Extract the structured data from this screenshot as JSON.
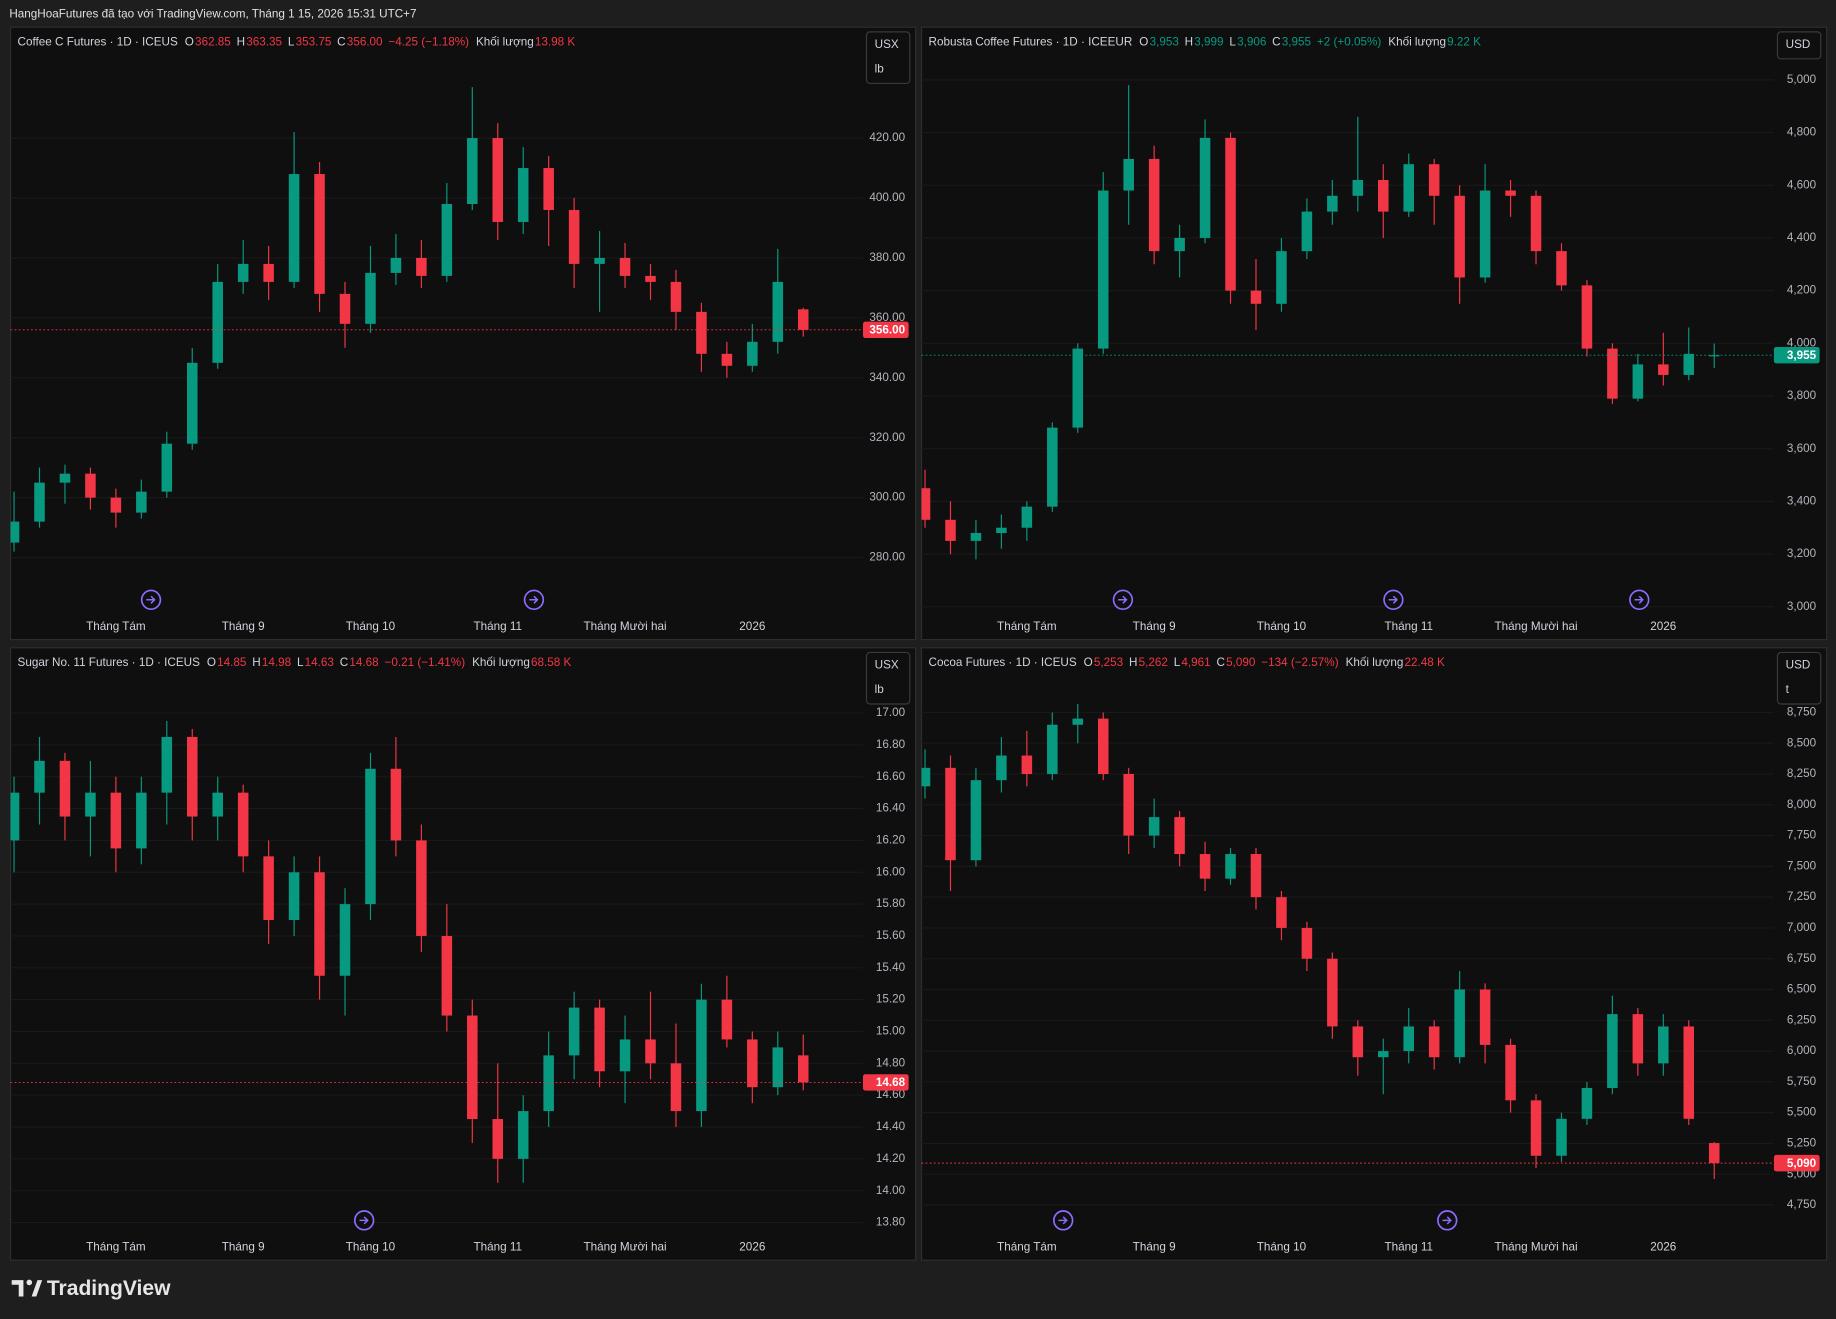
{
  "header": {
    "text": "HangHoaFutures đã tạo với TradingView.com, Tháng 1 15, 2026 15:31 UTC+7"
  },
  "footer": {
    "brand": "TradingView"
  },
  "chart_data": [
    {
      "type": "candlestick",
      "title": "Coffee C Futures · 1D · ICEUS",
      "legend": [
        {
          "label": "O",
          "value": "362.85"
        },
        {
          "label": "H",
          "value": "363.35"
        },
        {
          "label": "L",
          "value": "353.75"
        },
        {
          "label": "C",
          "value": "356.00"
        }
      ],
      "change": "−4.25 (−1.18%)",
      "volume_label": "Khối lượng",
      "volume": "13.98 K",
      "legend_color": "#f23645",
      "currency": [
        "USX",
        "lb"
      ],
      "categories": [
        null,
        null,
        null,
        null,
        "Tháng Tám",
        null,
        null,
        null,
        null,
        "Tháng 9",
        null,
        null,
        null,
        null,
        "Tháng 10",
        null,
        null,
        null,
        null,
        "Tháng 11",
        null,
        null,
        null,
        null,
        "Tháng Mười hai",
        null,
        null,
        null,
        null,
        "2026",
        null,
        null
      ],
      "open": [
        285,
        292,
        305,
        308,
        300,
        295,
        302,
        318,
        345,
        372,
        378,
        372,
        408,
        368,
        358,
        375,
        380,
        374,
        398,
        420,
        392,
        410,
        396,
        378,
        380,
        374,
        372,
        362,
        348,
        344,
        352,
        362.85
      ],
      "high": [
        302,
        310,
        311,
        310,
        303,
        306,
        322,
        350,
        378,
        386,
        384,
        422,
        412,
        372,
        384,
        388,
        386,
        405,
        437,
        425,
        417,
        414,
        400,
        389,
        385,
        378,
        376,
        365,
        352,
        358,
        383,
        363.35
      ],
      "low": [
        282,
        290,
        298,
        296,
        290,
        293,
        300,
        316,
        343,
        368,
        366,
        370,
        362,
        350,
        355,
        371,
        370,
        372,
        396,
        386,
        388,
        384,
        370,
        362,
        370,
        366,
        356,
        342,
        340,
        342,
        348,
        353.75
      ],
      "close": [
        292,
        305,
        308,
        300,
        295,
        302,
        318,
        345,
        372,
        378,
        372,
        408,
        368,
        358,
        375,
        380,
        374,
        398,
        420,
        392,
        410,
        396,
        378,
        380,
        374,
        372,
        362,
        348,
        344,
        352,
        372,
        356
      ],
      "up_color": "#089981",
      "down_color": "#f23645",
      "ylim": [
        262,
        457
      ],
      "yticks": [
        {
          "value": 280,
          "label": "280.00"
        },
        {
          "value": 300,
          "label": "300.00"
        },
        {
          "value": 320,
          "label": "320.00"
        },
        {
          "value": 340,
          "label": "340.00"
        },
        {
          "value": 360,
          "label": "360.00"
        },
        {
          "value": 380,
          "label": "380.00"
        },
        {
          "value": 400,
          "label": "400.00"
        },
        {
          "value": 420,
          "label": "420.00"
        }
      ],
      "grid": true,
      "last_price": {
        "value": 356,
        "label": "356.00"
      },
      "last_color": "#f23645"
    },
    {
      "type": "candlestick",
      "title": "Robusta Coffee Futures · 1D · ICEEUR",
      "legend": [
        {
          "label": "O",
          "value": "3,953"
        },
        {
          "label": "H",
          "value": "3,999"
        },
        {
          "label": "L",
          "value": "3,906"
        },
        {
          "label": "C",
          "value": "3,955"
        }
      ],
      "change": "+2 (+0.05%)",
      "volume_label": "Khối lượng",
      "volume": "9.22 K",
      "legend_color": "#089981",
      "currency": [
        "USD"
      ],
      "categories": [
        null,
        null,
        null,
        null,
        "Tháng Tám",
        null,
        null,
        null,
        null,
        "Tháng 9",
        null,
        null,
        null,
        null,
        "Tháng 10",
        null,
        null,
        null,
        null,
        "Tháng 11",
        null,
        null,
        null,
        null,
        "Tháng Mười hai",
        null,
        null,
        null,
        null,
        "2026",
        null,
        null
      ],
      "open": [
        3450,
        3330,
        3250,
        3280,
        3300,
        3380,
        3680,
        3980,
        4580,
        4700,
        4350,
        4400,
        4780,
        4200,
        4150,
        4350,
        4500,
        4560,
        4620,
        4500,
        4680,
        4560,
        4250,
        4580,
        4560,
        4350,
        4220,
        3980,
        3790,
        3920,
        3880,
        3953
      ],
      "high": [
        3520,
        3400,
        3330,
        3350,
        3400,
        3700,
        4000,
        4650,
        4980,
        4750,
        4450,
        4850,
        4800,
        4320,
        4400,
        4550,
        4620,
        4860,
        4680,
        4720,
        4700,
        4600,
        4680,
        4620,
        4580,
        4380,
        4240,
        4000,
        3960,
        4040,
        4060,
        3999
      ],
      "low": [
        3300,
        3200,
        3180,
        3220,
        3250,
        3360,
        3660,
        3960,
        4450,
        4300,
        4250,
        4380,
        4150,
        4050,
        4120,
        4320,
        4450,
        4500,
        4400,
        4480,
        4450,
        4150,
        4230,
        4480,
        4300,
        4200,
        3950,
        3770,
        3780,
        3840,
        3860,
        3906
      ],
      "close": [
        3330,
        3250,
        3280,
        3300,
        3380,
        3680,
        3980,
        4580,
        4700,
        4350,
        4400,
        4780,
        4200,
        4150,
        4350,
        4500,
        4560,
        4620,
        4500,
        4680,
        4560,
        4250,
        4580,
        4560,
        4350,
        4220,
        3980,
        3790,
        3920,
        3880,
        3960,
        3955
      ],
      "up_color": "#089981",
      "down_color": "#f23645",
      "ylim": [
        2982,
        5200
      ],
      "yticks": [
        {
          "value": 3000,
          "label": "3,000"
        },
        {
          "value": 3200,
          "label": "3,200"
        },
        {
          "value": 3400,
          "label": "3,400"
        },
        {
          "value": 3600,
          "label": "3,600"
        },
        {
          "value": 3800,
          "label": "3,800"
        },
        {
          "value": 4000,
          "label": "4,000"
        },
        {
          "value": 4200,
          "label": "4,200"
        },
        {
          "value": 4400,
          "label": "4,400"
        },
        {
          "value": 4600,
          "label": "4,600"
        },
        {
          "value": 4800,
          "label": "4,800"
        },
        {
          "value": 5000,
          "label": "5,000"
        }
      ],
      "grid": true,
      "last_price": {
        "value": 3955,
        "label": "3,955"
      },
      "last_color": "#089981"
    },
    {
      "type": "candlestick",
      "title": "Sugar No. 11 Futures · 1D · ICEUS",
      "legend": [
        {
          "label": "O",
          "value": "14.85"
        },
        {
          "label": "H",
          "value": "14.98"
        },
        {
          "label": "L",
          "value": "14.63"
        },
        {
          "label": "C",
          "value": "14.68"
        }
      ],
      "change": "−0.21 (−1.41%)",
      "volume_label": "Khối lượng",
      "volume": "68.58 K",
      "legend_color": "#f23645",
      "currency": [
        "USX",
        "lb"
      ],
      "categories": [
        null,
        null,
        null,
        null,
        "Tháng Tám",
        null,
        null,
        null,
        null,
        "Tháng 9",
        null,
        null,
        null,
        null,
        "Tháng 10",
        null,
        null,
        null,
        null,
        "Tháng 11",
        null,
        null,
        null,
        null,
        "Tháng Mười hai",
        null,
        null,
        null,
        null,
        "2026",
        null,
        null
      ],
      "open": [
        16.2,
        16.5,
        16.7,
        16.35,
        16.5,
        16.15,
        16.5,
        16.85,
        16.35,
        16.5,
        16.1,
        15.7,
        16.0,
        15.35,
        15.8,
        16.65,
        16.2,
        15.6,
        15.1,
        14.45,
        14.2,
        14.5,
        14.85,
        15.15,
        14.75,
        14.95,
        14.8,
        14.5,
        15.2,
        14.95,
        14.65,
        14.85
      ],
      "high": [
        16.6,
        16.85,
        16.75,
        16.7,
        16.6,
        16.6,
        16.95,
        16.9,
        16.6,
        16.55,
        16.2,
        16.1,
        16.1,
        15.9,
        16.75,
        16.85,
        16.3,
        15.8,
        15.2,
        14.8,
        14.6,
        15.0,
        15.25,
        15.2,
        15.1,
        15.25,
        15.05,
        15.3,
        15.35,
        15.0,
        15.0,
        14.98
      ],
      "low": [
        16.0,
        16.3,
        16.2,
        16.1,
        16.0,
        16.05,
        16.3,
        16.2,
        16.2,
        16.0,
        15.55,
        15.6,
        15.2,
        15.1,
        15.7,
        16.1,
        15.5,
        15.0,
        14.3,
        14.05,
        14.05,
        14.4,
        14.7,
        14.65,
        14.55,
        14.7,
        14.4,
        14.4,
        14.9,
        14.55,
        14.6,
        14.63
      ],
      "close": [
        16.5,
        16.7,
        16.35,
        16.5,
        16.15,
        16.5,
        16.85,
        16.35,
        16.5,
        16.1,
        15.7,
        16.0,
        15.35,
        15.8,
        16.65,
        16.2,
        15.6,
        15.1,
        14.45,
        14.2,
        14.5,
        14.85,
        15.15,
        14.75,
        14.95,
        14.8,
        14.5,
        15.2,
        14.95,
        14.65,
        14.9,
        14.68
      ],
      "up_color": "#089981",
      "down_color": "#f23645",
      "ylim": [
        13.74,
        17.41
      ],
      "yticks": [
        {
          "value": 13.8,
          "label": "13.80"
        },
        {
          "value": 14,
          "label": "14.00"
        },
        {
          "value": 14.2,
          "label": "14.20"
        },
        {
          "value": 14.4,
          "label": "14.40"
        },
        {
          "value": 14.6,
          "label": "14.60"
        },
        {
          "value": 14.8,
          "label": "14.80"
        },
        {
          "value": 15,
          "label": "15.00"
        },
        {
          "value": 15.2,
          "label": "15.20"
        },
        {
          "value": 15.4,
          "label": "15.40"
        },
        {
          "value": 15.6,
          "label": "15.60"
        },
        {
          "value": 15.8,
          "label": "15.80"
        },
        {
          "value": 16,
          "label": "16.00"
        },
        {
          "value": 16.2,
          "label": "16.20"
        },
        {
          "value": 16.4,
          "label": "16.40"
        },
        {
          "value": 16.6,
          "label": "16.60"
        },
        {
          "value": 16.8,
          "label": "16.80"
        },
        {
          "value": 17,
          "label": "17.00"
        }
      ],
      "grid": true,
      "last_price": {
        "value": 14.68,
        "label": "14.68"
      },
      "last_color": "#f23645"
    },
    {
      "type": "candlestick",
      "title": "Cocoa Futures · 1D · ICEUS",
      "legend": [
        {
          "label": "O",
          "value": "5,253"
        },
        {
          "label": "H",
          "value": "5,262"
        },
        {
          "label": "L",
          "value": "4,961"
        },
        {
          "label": "C",
          "value": "5,090"
        }
      ],
      "change": "−134 (−2.57%)",
      "volume_label": "Khối lượng",
      "volume": "22.48 K",
      "legend_color": "#f23645",
      "currency": [
        "USD",
        "t"
      ],
      "categories": [
        null,
        null,
        null,
        null,
        "Tháng Tám",
        null,
        null,
        null,
        null,
        "Tháng 9",
        null,
        null,
        null,
        null,
        "Tháng 10",
        null,
        null,
        null,
        null,
        "Tháng 11",
        null,
        null,
        null,
        null,
        "Tháng Mười hai",
        null,
        null,
        null,
        null,
        "2026",
        null,
        null
      ],
      "open": [
        8150,
        8300,
        7550,
        8200,
        8400,
        8250,
        8650,
        8700,
        8250,
        7750,
        7900,
        7600,
        7400,
        7600,
        7250,
        7000,
        6750,
        6200,
        5950,
        6000,
        6200,
        5950,
        6500,
        6050,
        5600,
        5150,
        5450,
        5700,
        6300,
        5900,
        6200,
        5253
      ],
      "high": [
        8450,
        8400,
        8300,
        8550,
        8600,
        8750,
        8820,
        8750,
        8300,
        8050,
        7950,
        7700,
        7650,
        7650,
        7300,
        7050,
        6800,
        6250,
        6100,
        6350,
        6250,
        6650,
        6550,
        6100,
        5650,
        5500,
        5750,
        6450,
        6350,
        6300,
        6250,
        5262
      ],
      "low": [
        8050,
        7300,
        7500,
        8100,
        8150,
        8200,
        8500,
        8200,
        7600,
        7650,
        7500,
        7300,
        7350,
        7150,
        6900,
        6650,
        6100,
        5800,
        5650,
        5900,
        5850,
        5900,
        5900,
        5500,
        5050,
        5100,
        5400,
        5650,
        5800,
        5800,
        5400,
        4961
      ],
      "close": [
        8300,
        7550,
        8200,
        8400,
        8250,
        8650,
        8700,
        8250,
        7750,
        7900,
        7600,
        7400,
        7600,
        7250,
        7000,
        6750,
        6200,
        5950,
        6000,
        6200,
        5950,
        6500,
        6050,
        5600,
        5150,
        5450,
        5700,
        6300,
        5900,
        6200,
        5450,
        5090
      ],
      "up_color": "#089981",
      "down_color": "#f23645",
      "ylim": [
        4530,
        9275
      ],
      "yticks": [
        {
          "value": 4750,
          "label": "4,750"
        },
        {
          "value": 5000,
          "label": "5,000"
        },
        {
          "value": 5250,
          "label": "5,250"
        },
        {
          "value": 5500,
          "label": "5,500"
        },
        {
          "value": 5750,
          "label": "5,750"
        },
        {
          "value": 6000,
          "label": "6,000"
        },
        {
          "value": 6250,
          "label": "6,250"
        },
        {
          "value": 6500,
          "label": "6,500"
        },
        {
          "value": 6750,
          "label": "6,750"
        },
        {
          "value": 7000,
          "label": "7,000"
        },
        {
          "value": 7250,
          "label": "7,250"
        },
        {
          "value": 7500,
          "label": "7,500"
        },
        {
          "value": 7750,
          "label": "7,750"
        },
        {
          "value": 8000,
          "label": "8,000"
        },
        {
          "value": 8250,
          "label": "8,250"
        },
        {
          "value": 8500,
          "label": "8,500"
        },
        {
          "value": 8750,
          "label": "8,750"
        }
      ],
      "grid": true,
      "last_price": {
        "value": 5090,
        "label": "5,090"
      },
      "last_color": "#f23645"
    }
  ]
}
